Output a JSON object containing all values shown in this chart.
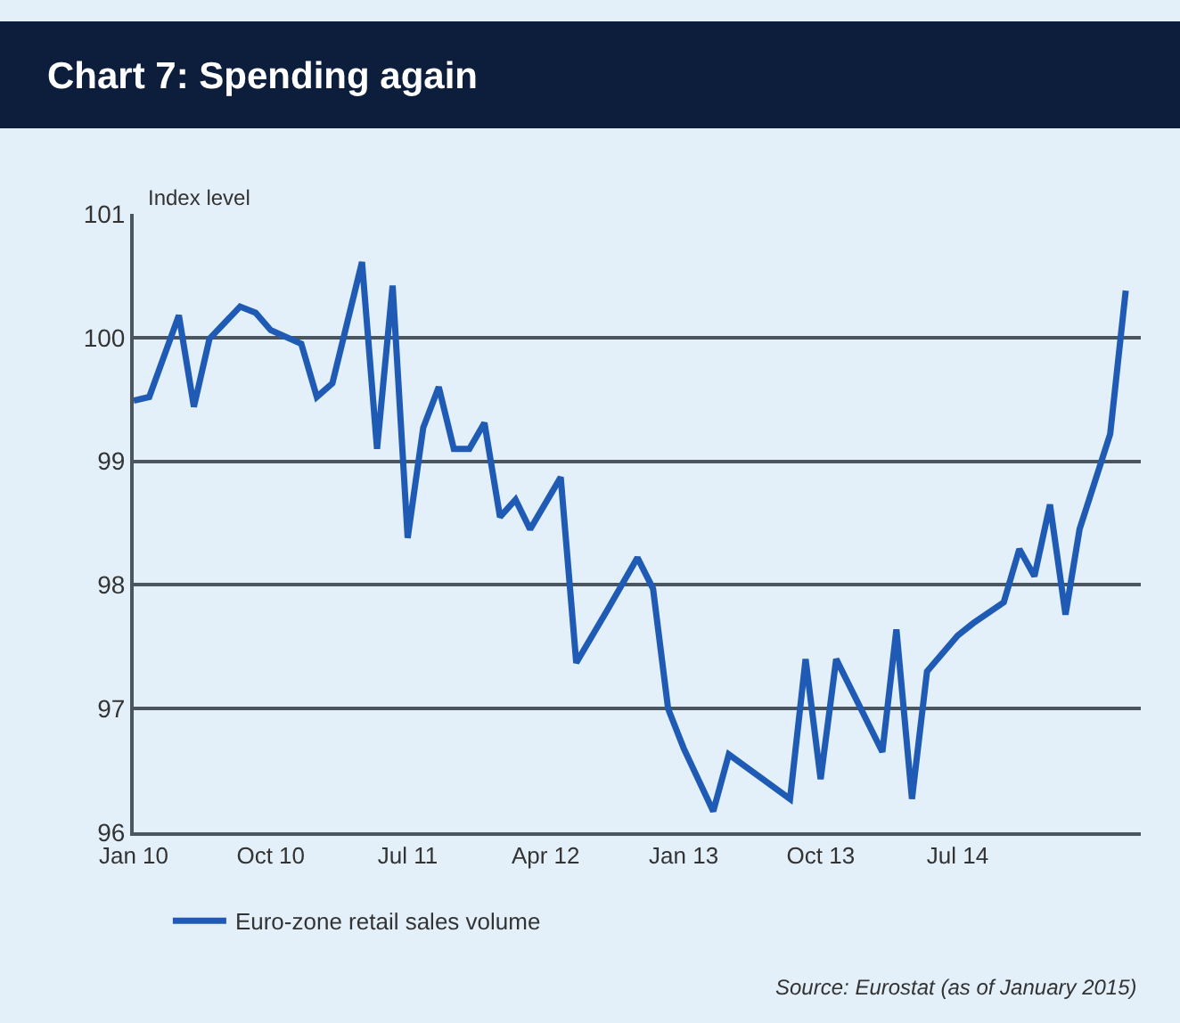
{
  "chart_data": {
    "type": "line",
    "title": "Chart 7: Spending again",
    "ylabel": "Index level",
    "x": [
      "2010-01",
      "2010-02",
      "2010-04",
      "2010-05",
      "2010-06",
      "2010-08",
      "2010-09",
      "2010-10",
      "2010-12",
      "2011-01",
      "2011-02",
      "2011-04",
      "2011-05",
      "2011-06",
      "2011-07",
      "2011-08",
      "2011-09",
      "2011-10",
      "2011-11",
      "2011-12",
      "2012-01",
      "2012-02",
      "2012-03",
      "2012-05",
      "2012-06",
      "2012-08",
      "2012-10",
      "2012-11",
      "2012-12",
      "2013-01",
      "2013-03",
      "2013-04",
      "2013-08",
      "2013-09",
      "2013-10",
      "2013-11",
      "2014-02",
      "2014-03",
      "2014-04",
      "2014-05",
      "2014-07",
      "2014-08",
      "2014-10",
      "2014-11",
      "2014-12",
      "2015-01",
      "2015-02",
      "2015-03",
      "2015-05",
      "2015-06"
    ],
    "series": [
      {
        "name": "Euro-zone retail sales volume",
        "color": "#1f5bb5",
        "values": [
          99.49,
          99.52,
          100.18,
          99.44,
          99.99,
          100.25,
          100.2,
          100.06,
          99.95,
          99.52,
          99.63,
          100.61,
          99.1,
          100.42,
          98.38,
          99.27,
          99.6,
          99.1,
          99.1,
          99.31,
          98.55,
          98.69,
          98.45,
          98.87,
          97.37,
          97.79,
          98.22,
          97.97,
          97.0,
          96.68,
          96.17,
          96.63,
          96.27,
          97.4,
          96.43,
          97.4,
          96.65,
          97.64,
          96.27,
          97.3,
          97.59,
          97.69,
          97.86,
          98.29,
          98.07,
          98.65,
          97.76,
          98.45,
          99.22,
          100.38
        ]
      }
    ],
    "xlim": [
      "2010-01",
      "2015-07"
    ],
    "xticks": [
      {
        "value": "2010-01",
        "label": "Jan 10"
      },
      {
        "value": "2010-10",
        "label": "Oct 10"
      },
      {
        "value": "2011-07",
        "label": "Jul 11"
      },
      {
        "value": "2012-04",
        "label": "Apr 12"
      },
      {
        "value": "2013-01",
        "label": "Jan 13"
      },
      {
        "value": "2013-10",
        "label": "Oct 13"
      },
      {
        "value": "2014-07",
        "label": "Jul 14"
      }
    ],
    "ylim": [
      96,
      101
    ],
    "yticks": [
      96,
      97,
      98,
      99,
      100,
      101
    ],
    "grid": "y",
    "legend": "bottom",
    "marker": "none",
    "line_style": "solid",
    "annotations": [
      "Source: Eurostat (as of January 2015)"
    ]
  }
}
